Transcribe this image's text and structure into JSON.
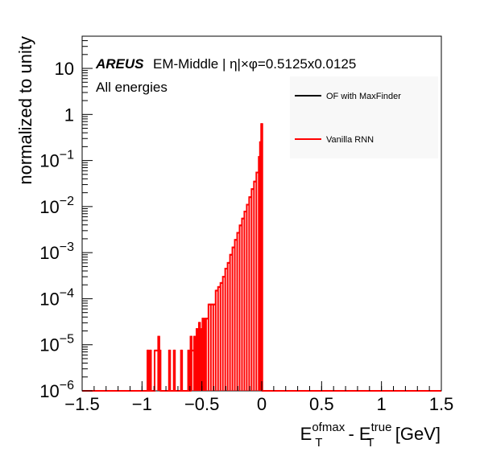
{
  "chart_data": {
    "type": "line",
    "xlim": [
      -1.5,
      1.5
    ],
    "ylim": [
      1e-06,
      50
    ],
    "log_y": true,
    "grid": false,
    "legend_position": "top-right",
    "xlabel": {
      "main1": "E",
      "sup1": "ofmax",
      "sub1": "T",
      "sep": " - E",
      "sup2": "true",
      "sub2": "T",
      "tail": " [GeV]"
    },
    "ylabel": "normalized to unity",
    "x_ticks": [
      "−1.5",
      "−1",
      "−0.5",
      "0",
      "0.5",
      "1",
      "1.5"
    ],
    "x_tick_values": [
      -1.5,
      -1,
      -0.5,
      0,
      0.5,
      1,
      1.5
    ],
    "y_ticks": [
      {
        "value": 1e-06,
        "base": "10",
        "exp": "−6"
      },
      {
        "value": 1e-05,
        "base": "10",
        "exp": "−5"
      },
      {
        "value": 0.0001,
        "base": "10",
        "exp": "−4"
      },
      {
        "value": 0.001,
        "base": "10",
        "exp": "−3"
      },
      {
        "value": 0.01,
        "base": "10",
        "exp": "−2"
      },
      {
        "value": 0.1,
        "base": "10",
        "exp": "−1"
      },
      {
        "value": 1,
        "base": "1",
        "exp": ""
      },
      {
        "value": 10,
        "base": "10",
        "exp": ""
      }
    ],
    "annotation": {
      "brand": "AREUS",
      "text": "EM-Middle | η|×φ=0.5125x0.0125",
      "line2": "All energies"
    },
    "series": [
      {
        "name": "OF with MaxFinder",
        "color": "#000000",
        "hidden_behind": "Vanilla RNN",
        "points": []
      },
      {
        "name": "Vanilla RNN",
        "color": "#ff0000",
        "bins": [
          {
            "x0": -0.955,
            "x1": -0.945,
            "y": 7.5e-06
          },
          {
            "x0": -0.935,
            "x1": -0.925,
            "y": 7.5e-06
          },
          {
            "x0": -0.895,
            "x1": -0.865,
            "y": 7.5e-06
          },
          {
            "x0": -0.865,
            "x1": -0.855,
            "y": 1.5e-05
          },
          {
            "x0": -0.855,
            "x1": -0.845,
            "y": 7.5e-06
          },
          {
            "x0": -0.775,
            "x1": -0.765,
            "y": 7.5e-06
          },
          {
            "x0": -0.735,
            "x1": -0.725,
            "y": 7.5e-06
          },
          {
            "x0": -0.675,
            "x1": -0.665,
            "y": 7.5e-06
          },
          {
            "x0": -0.615,
            "x1": -0.605,
            "y": 7.5e-06
          },
          {
            "x0": -0.595,
            "x1": -0.585,
            "y": 1.5e-05
          },
          {
            "x0": -0.585,
            "x1": -0.565,
            "y": 7.5e-06
          },
          {
            "x0": -0.565,
            "x1": -0.555,
            "y": 1.5e-05
          },
          {
            "x0": -0.555,
            "x1": -0.545,
            "y": 7.5e-06
          },
          {
            "x0": -0.545,
            "x1": -0.535,
            "y": 2.2e-05
          },
          {
            "x0": -0.535,
            "x1": -0.525,
            "y": 1.5e-05
          },
          {
            "x0": -0.525,
            "x1": -0.515,
            "y": 3e-05
          },
          {
            "x0": -0.515,
            "x1": -0.505,
            "y": 7.5e-06
          },
          {
            "x0": -0.505,
            "x1": -0.495,
            "y": 2.2e-05
          },
          {
            "x0": -0.495,
            "x1": -0.485,
            "y": 3.7e-05
          },
          {
            "x0": -0.485,
            "x1": -0.475,
            "y": 2.2e-05
          },
          {
            "x0": -0.475,
            "x1": -0.465,
            "y": 3.7e-05
          },
          {
            "x0": -0.465,
            "x1": -0.445,
            "y": 3.7e-05
          },
          {
            "x0": -0.445,
            "x1": -0.425,
            "y": 7.5e-05
          },
          {
            "x0": -0.425,
            "x1": -0.405,
            "y": 7.5e-05
          },
          {
            "x0": -0.405,
            "x1": -0.385,
            "y": 7.5e-05
          },
          {
            "x0": -0.385,
            "x1": -0.365,
            "y": 0.00015
          },
          {
            "x0": -0.365,
            "x1": -0.345,
            "y": 0.00018
          },
          {
            "x0": -0.345,
            "x1": -0.325,
            "y": 0.00022
          },
          {
            "x0": -0.325,
            "x1": -0.305,
            "y": 0.0003
          },
          {
            "x0": -0.305,
            "x1": -0.285,
            "y": 0.00045
          },
          {
            "x0": -0.285,
            "x1": -0.265,
            "y": 0.0006
          },
          {
            "x0": -0.265,
            "x1": -0.245,
            "y": 0.0009
          },
          {
            "x0": -0.245,
            "x1": -0.225,
            "y": 0.0013
          },
          {
            "x0": -0.225,
            "x1": -0.205,
            "y": 0.0019
          },
          {
            "x0": -0.205,
            "x1": -0.185,
            "y": 0.0027
          },
          {
            "x0": -0.185,
            "x1": -0.165,
            "y": 0.0039
          },
          {
            "x0": -0.165,
            "x1": -0.145,
            "y": 0.0055
          },
          {
            "x0": -0.145,
            "x1": -0.125,
            "y": 0.0078
          },
          {
            "x0": -0.125,
            "x1": -0.105,
            "y": 0.011
          },
          {
            "x0": -0.105,
            "x1": -0.085,
            "y": 0.016
          },
          {
            "x0": -0.085,
            "x1": -0.065,
            "y": 0.024
          },
          {
            "x0": -0.065,
            "x1": -0.045,
            "y": 0.035
          },
          {
            "x0": -0.045,
            "x1": -0.025,
            "y": 0.055
          },
          {
            "x0": -0.025,
            "x1": -0.015,
            "y": 0.12
          },
          {
            "x0": -0.015,
            "x1": -0.005,
            "y": 0.25
          },
          {
            "x0": -0.005,
            "x1": 0.005,
            "y": 0.62
          }
        ]
      }
    ]
  }
}
